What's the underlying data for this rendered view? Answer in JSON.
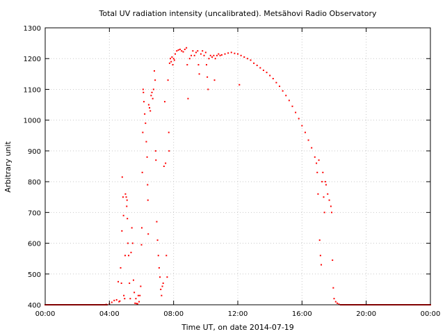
{
  "chart_data": {
    "type": "scatter",
    "title": "Total UV radiation intensity (uncalibrated). Metsähovi Radio Observatory",
    "xlabel": "Time UT, on date 2014-07-19",
    "ylabel": "Arbitrary unit",
    "xlim": [
      0,
      24
    ],
    "ylim": [
      400,
      1300
    ],
    "xticks": [
      0,
      4,
      8,
      12,
      16,
      20,
      24
    ],
    "xtick_labels": [
      "00:00",
      "04:00",
      "08:00",
      "12:00",
      "16:00",
      "20:00",
      "00:00"
    ],
    "yticks": [
      400,
      500,
      600,
      700,
      800,
      900,
      1000,
      1100,
      1200,
      1300
    ],
    "ytick_labels": [
      "400",
      "500",
      "600",
      "700",
      "800",
      "900",
      "1000",
      "1100",
      "1200",
      "1300"
    ],
    "grid": true,
    "color": "#ff0000",
    "series": [
      {
        "name": "",
        "points": [
          [
            0.0,
            400
          ],
          [
            0.5,
            400
          ],
          [
            1.0,
            400
          ],
          [
            1.5,
            400
          ],
          [
            2.0,
            400
          ],
          [
            2.5,
            400
          ],
          [
            3.0,
            400
          ],
          [
            3.5,
            400
          ],
          [
            3.8,
            401
          ],
          [
            4.0,
            403
          ],
          [
            4.15,
            408
          ],
          [
            4.3,
            414
          ],
          [
            4.45,
            416
          ],
          [
            4.55,
            475
          ],
          [
            4.6,
            410
          ],
          [
            4.65,
            412
          ],
          [
            4.7,
            520
          ],
          [
            4.75,
            470
          ],
          [
            4.78,
            640
          ],
          [
            4.8,
            815
          ],
          [
            4.85,
            750
          ],
          [
            4.88,
            690
          ],
          [
            4.9,
            430
          ],
          [
            4.95,
            420
          ],
          [
            4.98,
            560
          ],
          [
            5.0,
            760
          ],
          [
            5.05,
            750
          ],
          [
            5.08,
            720
          ],
          [
            5.1,
            740
          ],
          [
            5.12,
            680
          ],
          [
            5.15,
            600
          ],
          [
            5.2,
            560
          ],
          [
            5.25,
            470
          ],
          [
            5.3,
            420
          ],
          [
            5.35,
            570
          ],
          [
            5.4,
            650
          ],
          [
            5.45,
            600
          ],
          [
            5.5,
            480
          ],
          [
            5.55,
            440
          ],
          [
            5.6,
            405
          ],
          [
            5.65,
            420
          ],
          [
            5.7,
            404
          ],
          [
            5.75,
            403
          ],
          [
            5.8,
            430
          ],
          [
            5.85,
            410
          ],
          [
            5.9,
            430
          ],
          [
            5.95,
            460
          ],
          [
            6.0,
            595
          ],
          [
            6.02,
            650
          ],
          [
            6.05,
            830
          ],
          [
            6.08,
            960
          ],
          [
            6.1,
            1100
          ],
          [
            6.12,
            1090
          ],
          [
            6.15,
            1060
          ],
          [
            6.2,
            1020
          ],
          [
            6.25,
            990
          ],
          [
            6.3,
            930
          ],
          [
            6.35,
            880
          ],
          [
            6.38,
            790
          ],
          [
            6.4,
            740
          ],
          [
            6.42,
            630
          ],
          [
            6.45,
            1050
          ],
          [
            6.5,
            1040
          ],
          [
            6.55,
            1030
          ],
          [
            6.6,
            1080
          ],
          [
            6.65,
            1090
          ],
          [
            6.7,
            1070
          ],
          [
            6.75,
            1100
          ],
          [
            6.8,
            1160
          ],
          [
            6.85,
            1130
          ],
          [
            6.88,
            900
          ],
          [
            6.9,
            870
          ],
          [
            6.95,
            670
          ],
          [
            7.0,
            610
          ],
          [
            7.05,
            560
          ],
          [
            7.1,
            520
          ],
          [
            7.15,
            490
          ],
          [
            7.2,
            450
          ],
          [
            7.25,
            430
          ],
          [
            7.3,
            460
          ],
          [
            7.35,
            470
          ],
          [
            7.4,
            850
          ],
          [
            7.45,
            1060
          ],
          [
            7.5,
            860
          ],
          [
            7.55,
            560
          ],
          [
            7.6,
            490
          ],
          [
            7.65,
            1130
          ],
          [
            7.7,
            960
          ],
          [
            7.72,
            900
          ],
          [
            7.75,
            1185
          ],
          [
            7.8,
            1200
          ],
          [
            7.85,
            1190
          ],
          [
            7.9,
            1205
          ],
          [
            7.95,
            1180
          ],
          [
            8.0,
            1200
          ],
          [
            8.05,
            1195
          ],
          [
            8.1,
            1215
          ],
          [
            8.2,
            1225
          ],
          [
            8.3,
            1228
          ],
          [
            8.4,
            1230
          ],
          [
            8.5,
            1225
          ],
          [
            8.6,
            1222
          ],
          [
            8.7,
            1230
          ],
          [
            8.8,
            1235
          ],
          [
            8.85,
            1180
          ],
          [
            8.9,
            1070
          ],
          [
            9.0,
            1200
          ],
          [
            9.1,
            1210
          ],
          [
            9.2,
            1225
          ],
          [
            9.3,
            1210
          ],
          [
            9.4,
            1220
          ],
          [
            9.5,
            1225
          ],
          [
            9.55,
            1180
          ],
          [
            9.6,
            1150
          ],
          [
            9.7,
            1215
          ],
          [
            9.8,
            1225
          ],
          [
            9.9,
            1210
          ],
          [
            10.0,
            1220
          ],
          [
            10.05,
            1180
          ],
          [
            10.1,
            1140
          ],
          [
            10.15,
            1100
          ],
          [
            10.2,
            1200
          ],
          [
            10.3,
            1210
          ],
          [
            10.4,
            1205
          ],
          [
            10.5,
            1210
          ],
          [
            10.55,
            1130
          ],
          [
            10.6,
            1200
          ],
          [
            10.7,
            1210
          ],
          [
            10.8,
            1215
          ],
          [
            10.9,
            1210
          ],
          [
            11.0,
            1212
          ],
          [
            11.2,
            1215
          ],
          [
            11.4,
            1218
          ],
          [
            11.6,
            1220
          ],
          [
            11.8,
            1217
          ],
          [
            12.0,
            1215
          ],
          [
            12.1,
            1115
          ],
          [
            12.2,
            1210
          ],
          [
            12.4,
            1205
          ],
          [
            12.6,
            1200
          ],
          [
            12.8,
            1195
          ],
          [
            13.0,
            1185
          ],
          [
            13.2,
            1178
          ],
          [
            13.4,
            1170
          ],
          [
            13.6,
            1162
          ],
          [
            13.8,
            1155
          ],
          [
            14.0,
            1145
          ],
          [
            14.2,
            1135
          ],
          [
            14.4,
            1122
          ],
          [
            14.6,
            1110
          ],
          [
            14.8,
            1095
          ],
          [
            15.0,
            1080
          ],
          [
            15.2,
            1064
          ],
          [
            15.4,
            1045
          ],
          [
            15.6,
            1025
          ],
          [
            15.8,
            1005
          ],
          [
            16.0,
            982
          ],
          [
            16.2,
            960
          ],
          [
            16.4,
            935
          ],
          [
            16.6,
            910
          ],
          [
            16.8,
            880
          ],
          [
            16.9,
            860
          ],
          [
            16.95,
            830
          ],
          [
            17.0,
            760
          ],
          [
            17.05,
            870
          ],
          [
            17.1,
            610
          ],
          [
            17.15,
            560
          ],
          [
            17.2,
            530
          ],
          [
            17.25,
            800
          ],
          [
            17.3,
            830
          ],
          [
            17.35,
            750
          ],
          [
            17.4,
            700
          ],
          [
            17.45,
            800
          ],
          [
            17.5,
            790
          ],
          [
            17.6,
            760
          ],
          [
            17.7,
            740
          ],
          [
            17.8,
            720
          ],
          [
            17.85,
            700
          ],
          [
            17.9,
            545
          ],
          [
            17.95,
            455
          ],
          [
            18.0,
            420
          ],
          [
            18.1,
            410
          ],
          [
            18.2,
            405
          ],
          [
            18.3,
            402
          ],
          [
            18.4,
            400
          ],
          [
            18.6,
            400
          ],
          [
            19.0,
            400
          ],
          [
            19.5,
            400
          ],
          [
            20.0,
            400
          ],
          [
            20.5,
            400
          ],
          [
            21.0,
            400
          ],
          [
            21.5,
            400
          ],
          [
            22.0,
            400
          ],
          [
            22.5,
            400
          ],
          [
            23.0,
            400
          ],
          [
            23.5,
            400
          ],
          [
            24.0,
            400
          ]
        ]
      }
    ]
  }
}
